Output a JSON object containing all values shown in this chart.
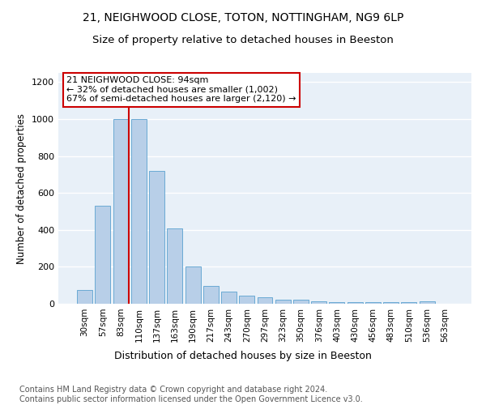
{
  "title1": "21, NEIGHWOOD CLOSE, TOTON, NOTTINGHAM, NG9 6LP",
  "title2": "Size of property relative to detached houses in Beeston",
  "xlabel": "Distribution of detached houses by size in Beeston",
  "ylabel": "Number of detached properties",
  "categories": [
    "30sqm",
    "57sqm",
    "83sqm",
    "110sqm",
    "137sqm",
    "163sqm",
    "190sqm",
    "217sqm",
    "243sqm",
    "270sqm",
    "297sqm",
    "323sqm",
    "350sqm",
    "376sqm",
    "403sqm",
    "430sqm",
    "456sqm",
    "483sqm",
    "510sqm",
    "536sqm",
    "563sqm"
  ],
  "values": [
    75,
    530,
    1002,
    1002,
    720,
    410,
    200,
    95,
    65,
    45,
    35,
    20,
    20,
    15,
    10,
    10,
    10,
    10,
    10,
    13,
    0
  ],
  "bar_color": "#b8cfe8",
  "bar_edge_color": "#6aaad4",
  "highlight_index": 2,
  "highlight_line_color": "#cc0000",
  "annotation_text": "21 NEIGHWOOD CLOSE: 94sqm\n← 32% of detached houses are smaller (1,002)\n67% of semi-detached houses are larger (2,120) →",
  "annotation_box_edgecolor": "#cc0000",
  "annotation_box_facecolor": "#ffffff",
  "ylim": [
    0,
    1250
  ],
  "yticks": [
    0,
    200,
    400,
    600,
    800,
    1000,
    1200
  ],
  "background_color": "#e8f0f8",
  "footer_text": "Contains HM Land Registry data © Crown copyright and database right 2024.\nContains public sector information licensed under the Open Government Licence v3.0.",
  "title1_fontsize": 10,
  "title2_fontsize": 9.5,
  "xlabel_fontsize": 9,
  "ylabel_fontsize": 8.5,
  "footer_fontsize": 7,
  "annotation_fontsize": 8
}
